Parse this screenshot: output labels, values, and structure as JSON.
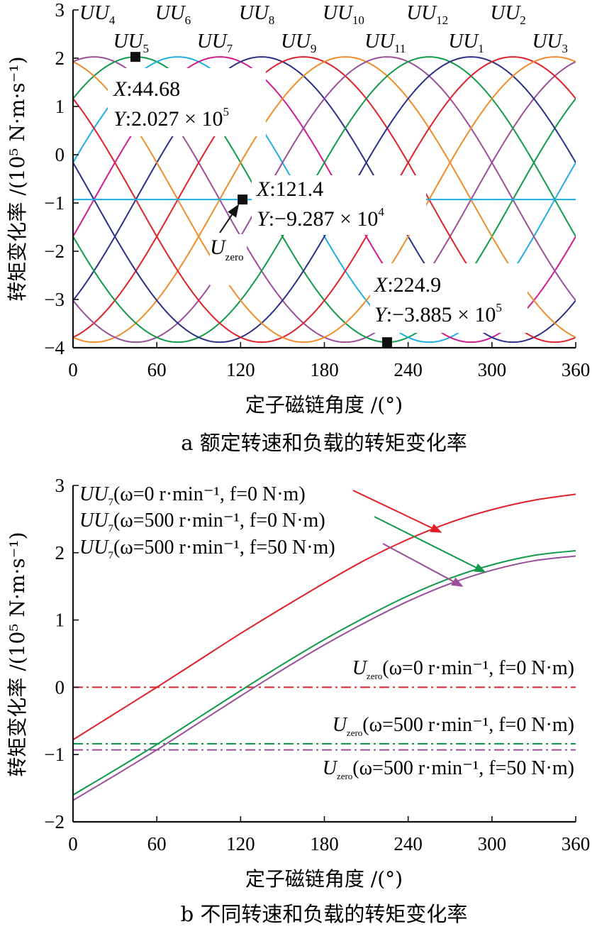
{
  "chart_data": [
    {
      "id": "a",
      "type": "line",
      "caption": "a 额定转速和负载的转矩变化率",
      "xlabel": "定子磁链角度 /(°)",
      "ylabel": "转矩变化率 /(10⁵ N·m·s⁻¹)",
      "xlim": [
        0,
        360
      ],
      "ylim": [
        -4,
        3
      ],
      "xticks": [
        "0",
        "60",
        "120",
        "180",
        "240",
        "300",
        "360"
      ],
      "yticks": [
        "3",
        "2",
        "1",
        "0",
        "−1",
        "−2",
        "−3",
        "−4"
      ],
      "model": "y = offset + amplitude·cos(x − peak_x), per vector",
      "amplitude": 2.956,
      "offset": -0.929,
      "series": [
        {
          "name": "UU4",
          "base": "UU",
          "sub": "4",
          "peak_x": 15,
          "color": "#9b4d9a"
        },
        {
          "name": "UU5",
          "base": "UU",
          "sub": "5",
          "peak_x": 45,
          "color": "#0f9a4a"
        },
        {
          "name": "UU6",
          "base": "UU",
          "sub": "6",
          "peak_x": 75,
          "color": "#1eaee0"
        },
        {
          "name": "UU7",
          "base": "UU",
          "sub": "7",
          "peak_x": 105,
          "color": "#d11a8c"
        },
        {
          "name": "UU8",
          "base": "UU",
          "sub": "8",
          "peak_x": 135,
          "color": "#2b2f86"
        },
        {
          "name": "UU9",
          "base": "UU",
          "sub": "9",
          "peak_x": 165,
          "color": "#e0202a"
        },
        {
          "name": "UU10",
          "base": "UU",
          "sub": "10",
          "peak_x": 195,
          "color": "#f08c2a"
        },
        {
          "name": "UU11",
          "base": "UU",
          "sub": "11",
          "peak_x": 225,
          "color": "#9b4d9a"
        },
        {
          "name": "UU12",
          "base": "UU",
          "sub": "12",
          "peak_x": 255,
          "color": "#0f9a4a"
        },
        {
          "name": "UU1",
          "base": "UU",
          "sub": "1",
          "peak_x": 285,
          "color": "#2b2f86"
        },
        {
          "name": "UU2",
          "base": "UU",
          "sub": "2",
          "peak_x": 315,
          "color": "#e0202a"
        },
        {
          "name": "UU3",
          "base": "UU",
          "sub": "3",
          "peak_x": 345,
          "color": "#f08c2a"
        }
      ],
      "zero_line": {
        "name": "Uzero",
        "base": "U",
        "sub": "zero",
        "y": -0.9287,
        "color": "#1eaee0"
      },
      "data_tips": [
        {
          "x": 44.68,
          "y": 2.027,
          "x_text": "44.68",
          "y_text": "2.027",
          "exp": "5"
        },
        {
          "x": 121.4,
          "y": -0.9287,
          "x_text": "121.4",
          "y_text": "−9.287",
          "exp": "4"
        },
        {
          "x": 224.9,
          "y": -3.885,
          "x_text": "224.9",
          "y_text": "−3.885",
          "exp": "5"
        }
      ],
      "tip_prefix_x": "X:",
      "tip_prefix_y": "Y:",
      "times_ten": "× 10"
    },
    {
      "id": "b",
      "type": "line",
      "caption": "b 不同转速和负载的转矩变化率",
      "xlabel": "定子磁链角度 /(°)",
      "ylabel": "转矩变化率 /(10⁵ N·m·s⁻¹)",
      "xlim": [
        0,
        360
      ],
      "ylim": [
        -2,
        3
      ],
      "xticks": [
        "0",
        "60",
        "120",
        "180",
        "240",
        "300",
        "360"
      ],
      "yticks": [
        "3",
        "2",
        "1",
        "0",
        "−1",
        "−2"
      ],
      "x": [
        0,
        30,
        60,
        90,
        120,
        150,
        180,
        210,
        240,
        270,
        300,
        330,
        360
      ],
      "series": [
        {
          "name": "UU7(ω=0 r·min⁻¹, f=0 N·m)",
          "label_cond": "(ω=0 r·min⁻¹, f=0 N·m)",
          "color": "#e0202a",
          "values": [
            -0.78,
            -0.39,
            0.0,
            0.4,
            0.8,
            1.18,
            1.55,
            1.9,
            2.2,
            2.45,
            2.64,
            2.78,
            2.87
          ]
        },
        {
          "name": "UU7(ω=500 r·min⁻¹, f=0 N·m)",
          "label_cond": "(ω=500 r·min⁻¹, f=0 N·m)",
          "color": "#0f9a4a",
          "values": [
            -1.6,
            -1.23,
            -0.85,
            -0.45,
            -0.05,
            0.34,
            0.71,
            1.05,
            1.36,
            1.62,
            1.82,
            1.96,
            2.03
          ]
        },
        {
          "name": "UU7(ω=500 r·min⁻¹, f=50 N·m)",
          "label_cond": "(ω=500 r·min⁻¹, f=50 N·m)",
          "color": "#9b4d9a",
          "values": [
            -1.68,
            -1.31,
            -0.93,
            -0.53,
            -0.13,
            0.26,
            0.63,
            0.97,
            1.28,
            1.54,
            1.74,
            1.88,
            1.95
          ]
        }
      ],
      "zero_lines": [
        {
          "name": "Uzero(ω=0 r·min⁻¹, f=0 N·m)",
          "label_cond": "(ω=0 r·min⁻¹, f=0 N·m)",
          "y": 0.0,
          "color": "#e0202a"
        },
        {
          "name": "Uzero(ω=500 r·min⁻¹, f=0 N·m)",
          "label_cond": "(ω=500 r·min⁻¹, f=0 N·m)",
          "y": -0.84,
          "color": "#0f9a4a"
        },
        {
          "name": "Uzero(ω=500 r·min⁻¹, f=50 N·m)",
          "label_cond": "(ω=500 r·min⁻¹, f=50 N·m)",
          "y": -0.93,
          "color": "#9b4d9a"
        }
      ],
      "series_base": "UU",
      "series_sub": "7",
      "zero_base": "U",
      "zero_sub": "zero"
    }
  ]
}
